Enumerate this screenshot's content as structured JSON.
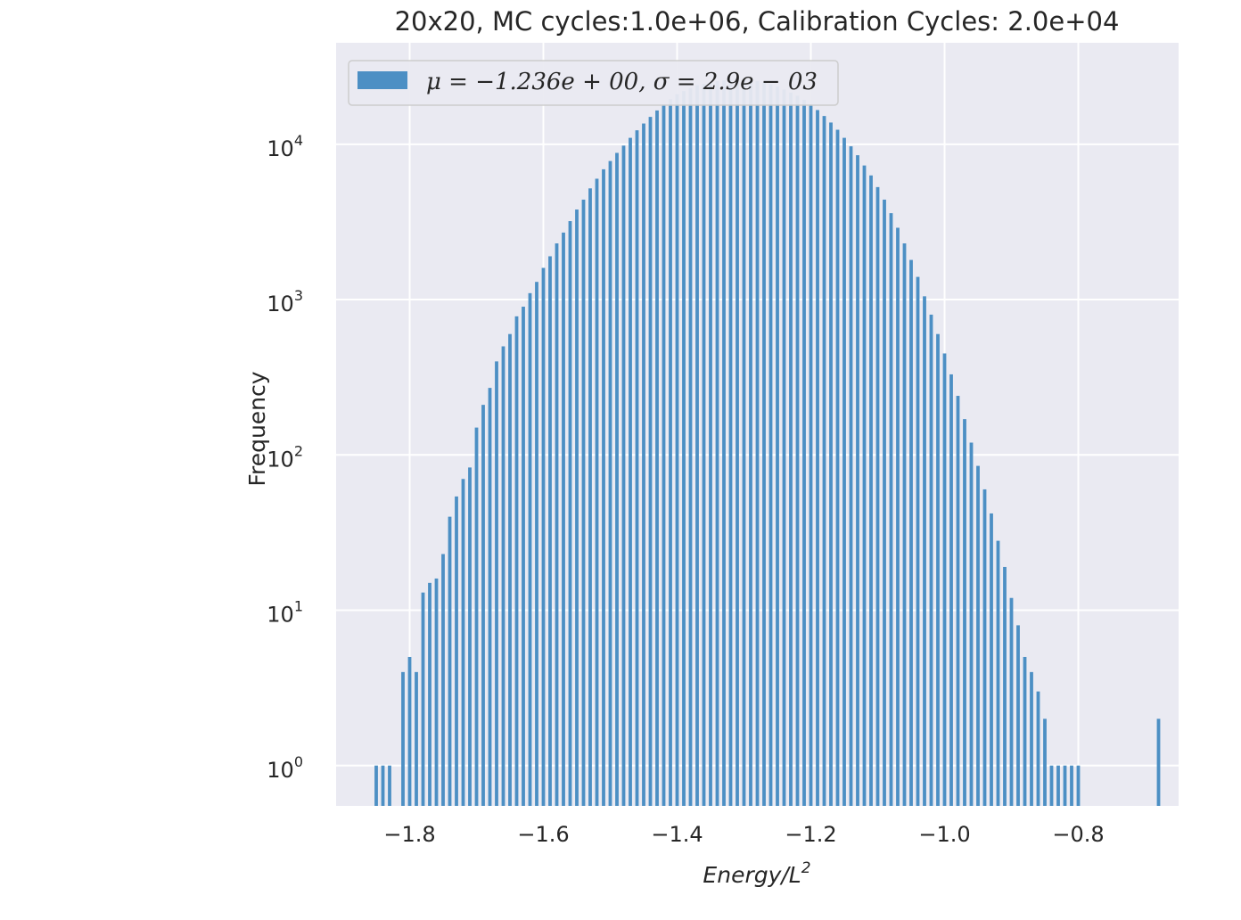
{
  "chart_data": {
    "type": "bar",
    "title": "20x20, MC cycles:1.0e+06, Calibration Cycles: 2.0e+04",
    "xlabel": "Energy/L",
    "xlabel_superscript": "2",
    "ylabel": "Frequency",
    "yscale": "log",
    "xlim": [
      -1.91,
      -0.65
    ],
    "ylim": [
      0.55,
      45000
    ],
    "grid": true,
    "legend_position": "top-left",
    "bar_color": "#4c8fc4",
    "plot_background": "#eaeaf2",
    "x_ticks": [
      -1.8,
      -1.6,
      -1.4,
      -1.2,
      -1.0,
      -0.8
    ],
    "x_tick_labels": [
      "−1.8",
      "−1.6",
      "−1.4",
      "−1.2",
      "−1.0",
      "−0.8"
    ],
    "y_ticks": [
      1,
      10,
      100,
      1000,
      10000
    ],
    "y_tick_labels": [
      {
        "base": "10",
        "exp": "0"
      },
      {
        "base": "10",
        "exp": "1"
      },
      {
        "base": "10",
        "exp": "2"
      },
      {
        "base": "10",
        "exp": "3"
      },
      {
        "base": "10",
        "exp": "4"
      }
    ],
    "series": [
      {
        "name": "μ = −1.236e + 00, σ = 2.9e − 03",
        "x": [
          -1.85,
          -1.84,
          -1.83,
          -1.82,
          -1.81,
          -1.8,
          -1.79,
          -1.78,
          -1.77,
          -1.76,
          -1.75,
          -1.74,
          -1.73,
          -1.72,
          -1.71,
          -1.7,
          -1.69,
          -1.68,
          -1.67,
          -1.66,
          -1.65,
          -1.64,
          -1.63,
          -1.62,
          -1.61,
          -1.6,
          -1.59,
          -1.58,
          -1.57,
          -1.56,
          -1.55,
          -1.54,
          -1.53,
          -1.52,
          -1.51,
          -1.5,
          -1.49,
          -1.48,
          -1.47,
          -1.46,
          -1.45,
          -1.44,
          -1.43,
          -1.42,
          -1.41,
          -1.4,
          -1.39,
          -1.38,
          -1.37,
          -1.36,
          -1.35,
          -1.34,
          -1.33,
          -1.32,
          -1.31,
          -1.3,
          -1.29,
          -1.28,
          -1.27,
          -1.26,
          -1.25,
          -1.24,
          -1.23,
          -1.22,
          -1.21,
          -1.2,
          -1.19,
          -1.18,
          -1.17,
          -1.16,
          -1.15,
          -1.14,
          -1.13,
          -1.12,
          -1.11,
          -1.1,
          -1.09,
          -1.08,
          -1.07,
          -1.06,
          -1.05,
          -1.04,
          -1.03,
          -1.02,
          -1.01,
          -1.0,
          -0.99,
          -0.98,
          -0.97,
          -0.96,
          -0.95,
          -0.94,
          -0.93,
          -0.92,
          -0.91,
          -0.9,
          -0.89,
          -0.88,
          -0.87,
          -0.86,
          -0.85,
          -0.84,
          -0.83,
          -0.82,
          -0.81,
          -0.8,
          -0.79,
          -0.78,
          -0.77,
          -0.76,
          -0.75,
          -0.74,
          -0.73,
          -0.72,
          -0.71,
          -0.7,
          -0.69,
          -0.68
        ],
        "values": [
          1,
          1,
          1,
          0,
          4,
          5,
          4,
          13,
          15,
          16,
          23,
          40,
          54,
          70,
          83,
          150,
          210,
          270,
          400,
          500,
          600,
          780,
          900,
          1100,
          1300,
          1600,
          1900,
          2300,
          2700,
          3200,
          3800,
          4400,
          5200,
          6000,
          6900,
          7800,
          8800,
          9800,
          11000,
          12300,
          13600,
          15000,
          16500,
          18000,
          19500,
          21000,
          22000,
          23000,
          24000,
          24500,
          25000,
          25500,
          25800,
          26000,
          26200,
          26000,
          25800,
          25500,
          25000,
          24300,
          23500,
          22500,
          21500,
          20500,
          19300,
          18000,
          16600,
          15200,
          13800,
          12400,
          11000,
          9700,
          8500,
          7300,
          6300,
          5300,
          4400,
          3600,
          2900,
          2300,
          1800,
          1400,
          1050,
          800,
          600,
          450,
          330,
          240,
          170,
          120,
          85,
          60,
          42,
          28,
          19,
          12,
          8,
          5,
          4,
          3,
          2,
          1,
          1,
          1,
          1,
          1,
          0,
          0,
          0,
          0,
          0,
          0,
          0,
          0,
          0,
          0,
          0,
          2
        ]
      }
    ]
  }
}
